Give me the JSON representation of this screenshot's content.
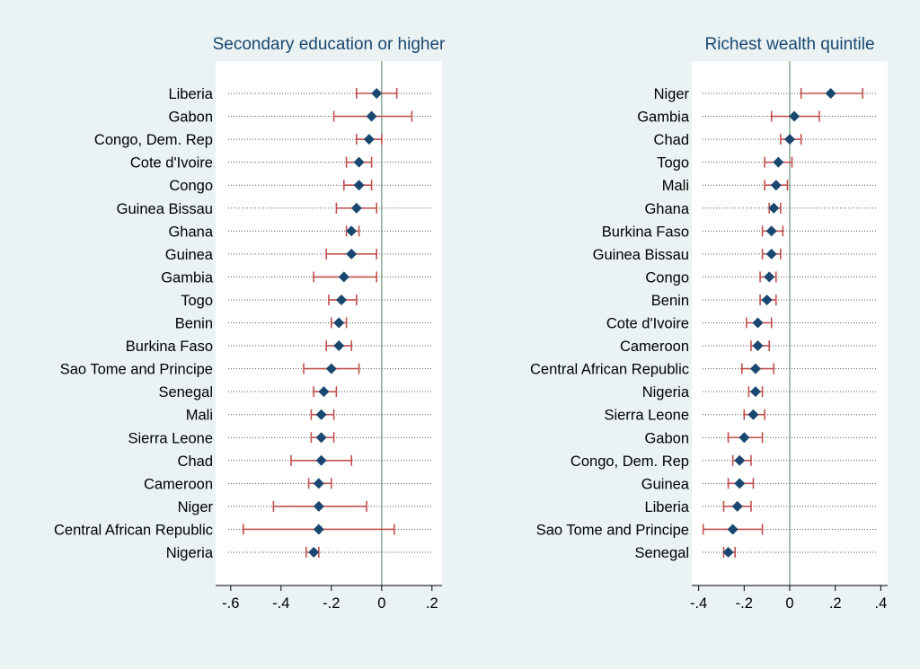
{
  "colors": {
    "background": "#eaf2f3",
    "plot_background": "#ffffff",
    "title": "#1a476f",
    "marker": "#1a476f",
    "ci": "#c0504d",
    "zero_line": "#7fa58f",
    "dotted": "#555555",
    "axis": "#000000"
  },
  "chart_data": [
    {
      "type": "dot-and-whisker",
      "title": "Secondary education or higher",
      "xticks": [
        -0.6,
        -0.4,
        -0.2,
        0,
        0.2
      ],
      "xtick_labels": [
        "-.6",
        "-.4",
        "-.2",
        "0",
        ".2"
      ],
      "xlim": [
        -0.66,
        0.24
      ],
      "reference_line": 0,
      "rows": [
        {
          "label": "Liberia",
          "est": -0.02,
          "lo": -0.1,
          "hi": 0.06
        },
        {
          "label": "Gabon",
          "est": -0.04,
          "lo": -0.19,
          "hi": 0.12
        },
        {
          "label": "Congo, Dem. Rep",
          "est": -0.05,
          "lo": -0.1,
          "hi": 0.0
        },
        {
          "label": "Cote d'Ivoire",
          "est": -0.09,
          "lo": -0.14,
          "hi": -0.04
        },
        {
          "label": "Congo",
          "est": -0.09,
          "lo": -0.15,
          "hi": -0.04
        },
        {
          "label": "Guinea Bissau",
          "est": -0.1,
          "lo": -0.18,
          "hi": -0.02
        },
        {
          "label": "Ghana",
          "est": -0.12,
          "lo": -0.14,
          "hi": -0.09
        },
        {
          "label": "Guinea",
          "est": -0.12,
          "lo": -0.22,
          "hi": -0.02
        },
        {
          "label": "Gambia",
          "est": -0.15,
          "lo": -0.27,
          "hi": -0.02
        },
        {
          "label": "Togo",
          "est": -0.16,
          "lo": -0.21,
          "hi": -0.1
        },
        {
          "label": "Benin",
          "est": -0.17,
          "lo": -0.2,
          "hi": -0.14
        },
        {
          "label": "Burkina Faso",
          "est": -0.17,
          "lo": -0.22,
          "hi": -0.12
        },
        {
          "label": "Sao Tome and Principe",
          "est": -0.2,
          "lo": -0.31,
          "hi": -0.09
        },
        {
          "label": "Senegal",
          "est": -0.23,
          "lo": -0.27,
          "hi": -0.18
        },
        {
          "label": "Mali",
          "est": -0.24,
          "lo": -0.28,
          "hi": -0.19
        },
        {
          "label": "Sierra Leone",
          "est": -0.24,
          "lo": -0.28,
          "hi": -0.19
        },
        {
          "label": "Chad",
          "est": -0.24,
          "lo": -0.36,
          "hi": -0.12
        },
        {
          "label": "Cameroon",
          "est": -0.25,
          "lo": -0.29,
          "hi": -0.2
        },
        {
          "label": "Niger",
          "est": -0.25,
          "lo": -0.43,
          "hi": -0.06
        },
        {
          "label": "Central African Republic",
          "est": -0.25,
          "lo": -0.55,
          "hi": 0.05
        },
        {
          "label": "Nigeria",
          "est": -0.27,
          "lo": -0.3,
          "hi": -0.25
        }
      ]
    },
    {
      "type": "dot-and-whisker",
      "title": "Richest wealth quintile",
      "xticks": [
        -0.4,
        -0.2,
        0,
        0.2,
        0.4
      ],
      "xtick_labels": [
        "-.4",
        "-.2",
        "0",
        ".2",
        ".4"
      ],
      "xlim": [
        -0.43,
        0.43
      ],
      "reference_line": 0,
      "rows": [
        {
          "label": "Niger",
          "est": 0.18,
          "lo": 0.05,
          "hi": 0.32
        },
        {
          "label": "Gambia",
          "est": 0.02,
          "lo": -0.08,
          "hi": 0.13
        },
        {
          "label": "Chad",
          "est": 0.0,
          "lo": -0.04,
          "hi": 0.05
        },
        {
          "label": "Togo",
          "est": -0.05,
          "lo": -0.11,
          "hi": 0.01
        },
        {
          "label": "Mali",
          "est": -0.06,
          "lo": -0.11,
          "hi": -0.01
        },
        {
          "label": "Ghana",
          "est": -0.07,
          "lo": -0.09,
          "hi": -0.04
        },
        {
          "label": "Burkina Faso",
          "est": -0.08,
          "lo": -0.12,
          "hi": -0.03
        },
        {
          "label": "Guinea Bissau",
          "est": -0.08,
          "lo": -0.12,
          "hi": -0.04
        },
        {
          "label": "Congo",
          "est": -0.09,
          "lo": -0.13,
          "hi": -0.06
        },
        {
          "label": "Benin",
          "est": -0.1,
          "lo": -0.13,
          "hi": -0.06
        },
        {
          "label": "Cote d'Ivoire",
          "est": -0.14,
          "lo": -0.19,
          "hi": -0.08
        },
        {
          "label": "Cameroon",
          "est": -0.14,
          "lo": -0.17,
          "hi": -0.09
        },
        {
          "label": "Central African Republic",
          "est": -0.15,
          "lo": -0.21,
          "hi": -0.07
        },
        {
          "label": "Nigeria",
          "est": -0.15,
          "lo": -0.18,
          "hi": -0.12
        },
        {
          "label": "Sierra Leone",
          "est": -0.16,
          "lo": -0.2,
          "hi": -0.11
        },
        {
          "label": "Gabon",
          "est": -0.2,
          "lo": -0.27,
          "hi": -0.12
        },
        {
          "label": "Congo, Dem. Rep",
          "est": -0.22,
          "lo": -0.25,
          "hi": -0.17
        },
        {
          "label": "Guinea",
          "est": -0.22,
          "lo": -0.27,
          "hi": -0.16
        },
        {
          "label": "Liberia",
          "est": -0.23,
          "lo": -0.29,
          "hi": -0.17
        },
        {
          "label": "Sao Tome and Principe",
          "est": -0.25,
          "lo": -0.38,
          "hi": -0.12
        },
        {
          "label": "Senegal",
          "est": -0.27,
          "lo": -0.29,
          "hi": -0.24
        }
      ]
    }
  ]
}
